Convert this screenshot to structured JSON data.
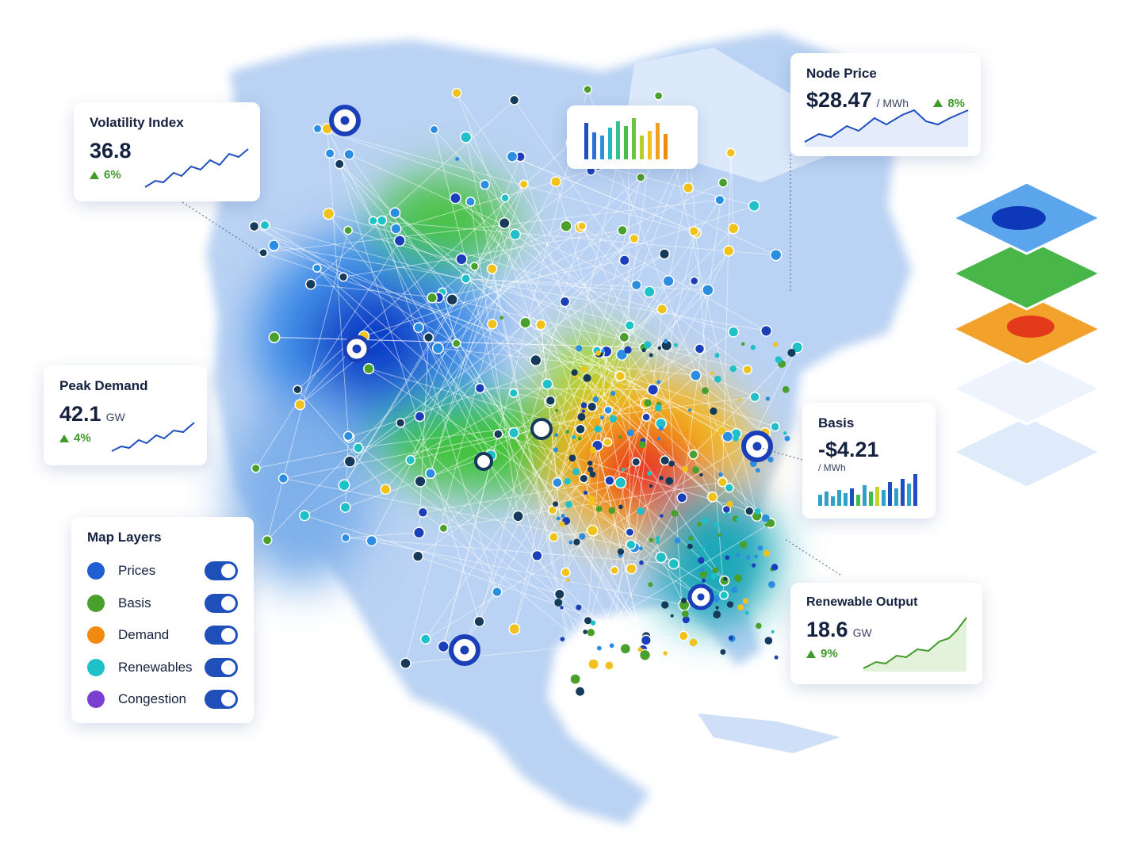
{
  "cards": {
    "volatility": {
      "title": "Volatility Index",
      "value": "36.8",
      "change": "6%"
    },
    "node_price": {
      "title": "Node Price",
      "value": "$28.47",
      "unit": "/ MWh",
      "change": "8%"
    },
    "peak_demand": {
      "title": "Peak Demand",
      "value": "42.1",
      "unit": "GW",
      "change": "4%"
    },
    "basis": {
      "title": "Basis",
      "value": "-$4.21",
      "unit": "/ MWh"
    },
    "renewable": {
      "title": "Renewable Output",
      "value": "18.6",
      "unit": "GW",
      "change": "9%"
    }
  },
  "layers": {
    "title": "Map Layers",
    "items": [
      {
        "label": "Prices",
        "color": "#1f5fd1"
      },
      {
        "label": "Basis",
        "color": "#4aa02c"
      },
      {
        "label": "Demand",
        "color": "#f28a12"
      },
      {
        "label": "Renewables",
        "color": "#1fc0c8"
      },
      {
        "label": "Congestion",
        "color": "#7a3fd0"
      }
    ]
  }
}
